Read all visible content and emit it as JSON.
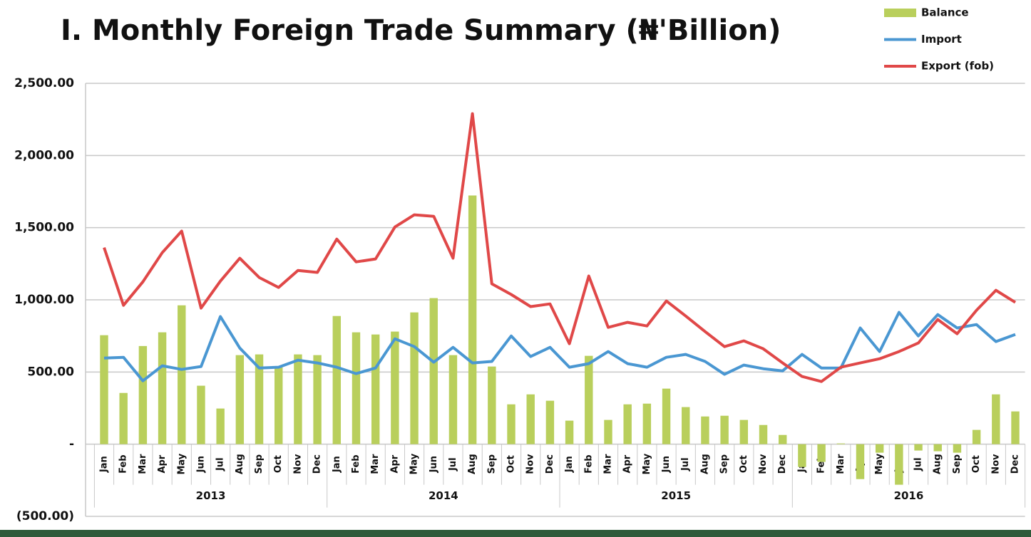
{
  "chart_data": {
    "type": "bar_line",
    "title": "I. Monthly Foreign Trade Summary (₦'Billion)",
    "categories": [
      "Jan",
      "Feb",
      "Mar",
      "Apr",
      "May",
      "Jun",
      "Jul",
      "Aug",
      "Sep",
      "Oct",
      "Nov",
      "Dec",
      "Jan",
      "Feb",
      "Mar",
      "Apr",
      "May",
      "Jun",
      "Jul",
      "Aug",
      "Sep",
      "Oct",
      "Nov",
      "Dec",
      "Jan",
      "Feb",
      "Mar",
      "Apr",
      "May",
      "Jun",
      "Jul",
      "Aug",
      "Sep",
      "Oct",
      "Nov",
      "Dec",
      "Jan",
      "Feb",
      "Mar",
      "Apr",
      "May",
      "Jun",
      "Jul",
      "Aug",
      "Sep",
      "Oct",
      "Nov",
      "Dec"
    ],
    "group_labels": [
      "2013",
      "2014",
      "2015",
      "2016"
    ],
    "series": [
      {
        "name": "Balance",
        "kind": "bar",
        "color": "#b9cf5c",
        "values": [
          755,
          355,
          680,
          775,
          962,
          405,
          247,
          617,
          622,
          533,
          622,
          617,
          888,
          775,
          760,
          780,
          913,
          1012,
          617,
          1723,
          538,
          276,
          345,
          301,
          163,
          612,
          168,
          276,
          281,
          385,
          257,
          192,
          197,
          168,
          133,
          64,
          -158,
          -123,
          5,
          -242,
          -59,
          -281,
          -44,
          -49,
          -59,
          99,
          345,
          227
        ]
      },
      {
        "name": "Import",
        "kind": "line",
        "color": "#4a97d2",
        "values": [
          597,
          602,
          439,
          543,
          518,
          538,
          884,
          666,
          528,
          533,
          582,
          563,
          533,
          489,
          528,
          730,
          676,
          568,
          671,
          563,
          573,
          750,
          607,
          671,
          533,
          558,
          642,
          558,
          533,
          602,
          622,
          573,
          484,
          548,
          523,
          508,
          622,
          528,
          528,
          805,
          642,
          913,
          750,
          898,
          805,
          829,
          711,
          760
        ]
      },
      {
        "name": "Export (fob)",
        "kind": "line",
        "color": "#e04848",
        "values": [
          1362,
          962,
          1125,
          1327,
          1476,
          943,
          1130,
          1288,
          1155,
          1086,
          1204,
          1190,
          1421,
          1263,
          1283,
          1505,
          1589,
          1579,
          1288,
          2290,
          1111,
          1037,
          953,
          972,
          696,
          1165,
          809,
          844,
          819,
          992,
          888,
          780,
          676,
          716,
          661,
          563,
          469,
          434,
          533,
          563,
          592,
          642,
          701,
          864,
          765,
          928,
          1066,
          982
        ]
      }
    ],
    "ylim": [
      -500,
      2500
    ],
    "yticks": [
      {
        "value": -500,
        "label": "(500.00)"
      },
      {
        "value": 0,
        "label": "-"
      },
      {
        "value": 500,
        "label": "500.00"
      },
      {
        "value": 1000,
        "label": "1,000.00"
      },
      {
        "value": 1500,
        "label": "1,500.00"
      },
      {
        "value": 2000,
        "label": "2,000.00"
      },
      {
        "value": 2500,
        "label": "2,500.00"
      }
    ],
    "grid": true,
    "legend": "top-right"
  }
}
